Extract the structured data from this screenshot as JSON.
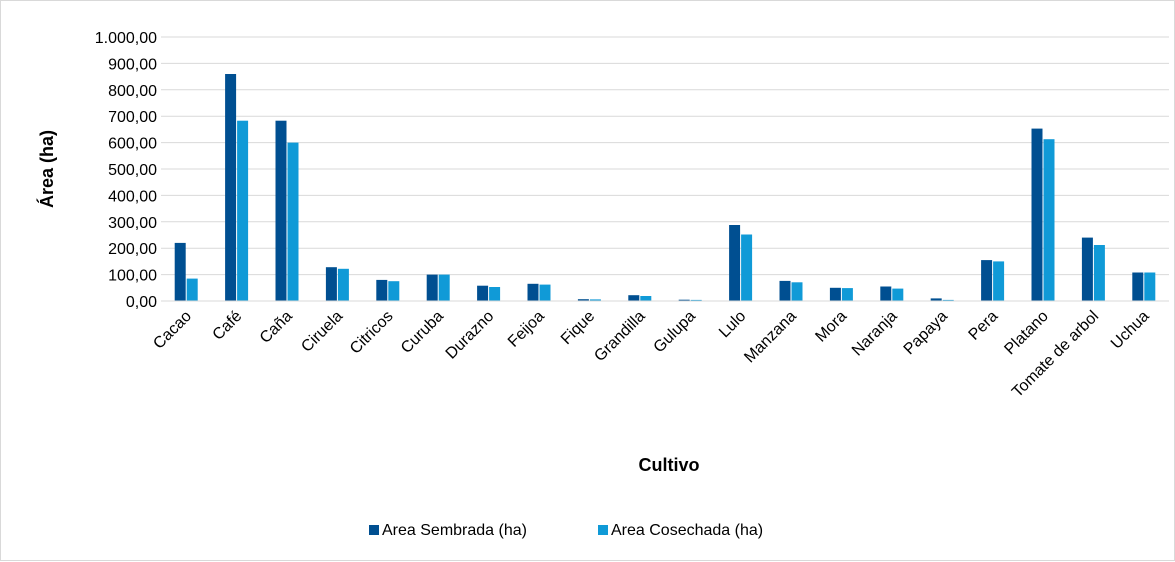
{
  "chart_data": {
    "type": "bar",
    "title": "",
    "xlabel": "Cultivo",
    "ylabel": "Área (ha)",
    "ylim": [
      0,
      1000
    ],
    "ytick_step": 100,
    "ytick_labels": [
      "0,00",
      "100,00",
      "200,00",
      "300,00",
      "400,00",
      "500,00",
      "600,00",
      "700,00",
      "800,00",
      "900,00",
      "1.000,00"
    ],
    "grid": true,
    "legend_position": "bottom",
    "categories": [
      "Cacao",
      "Café",
      "Caña",
      "Ciruela",
      "Citricos",
      "Curuba",
      "Durazno",
      "Feijoa",
      "Fique",
      "Grandilla",
      "Gulupa",
      "Lulo",
      "Manzana",
      "Mora",
      "Naranja",
      "Papaya",
      "Pera",
      "Platano",
      "Tomate de arbol",
      "Uchua"
    ],
    "series": [
      {
        "name": "Area Sembrada (ha)",
        "color": "#004f91",
        "values": [
          220,
          860,
          683,
          128,
          80,
          100,
          58,
          65,
          7,
          22,
          5,
          288,
          76,
          50,
          55,
          10,
          155,
          653,
          240,
          108
        ]
      },
      {
        "name": "Area Cosechada (ha)",
        "color": "#109ad7",
        "values": [
          85,
          683,
          600,
          122,
          75,
          100,
          53,
          62,
          6,
          19,
          4,
          252,
          71,
          49,
          47,
          4,
          150,
          613,
          212,
          108
        ]
      }
    ]
  }
}
